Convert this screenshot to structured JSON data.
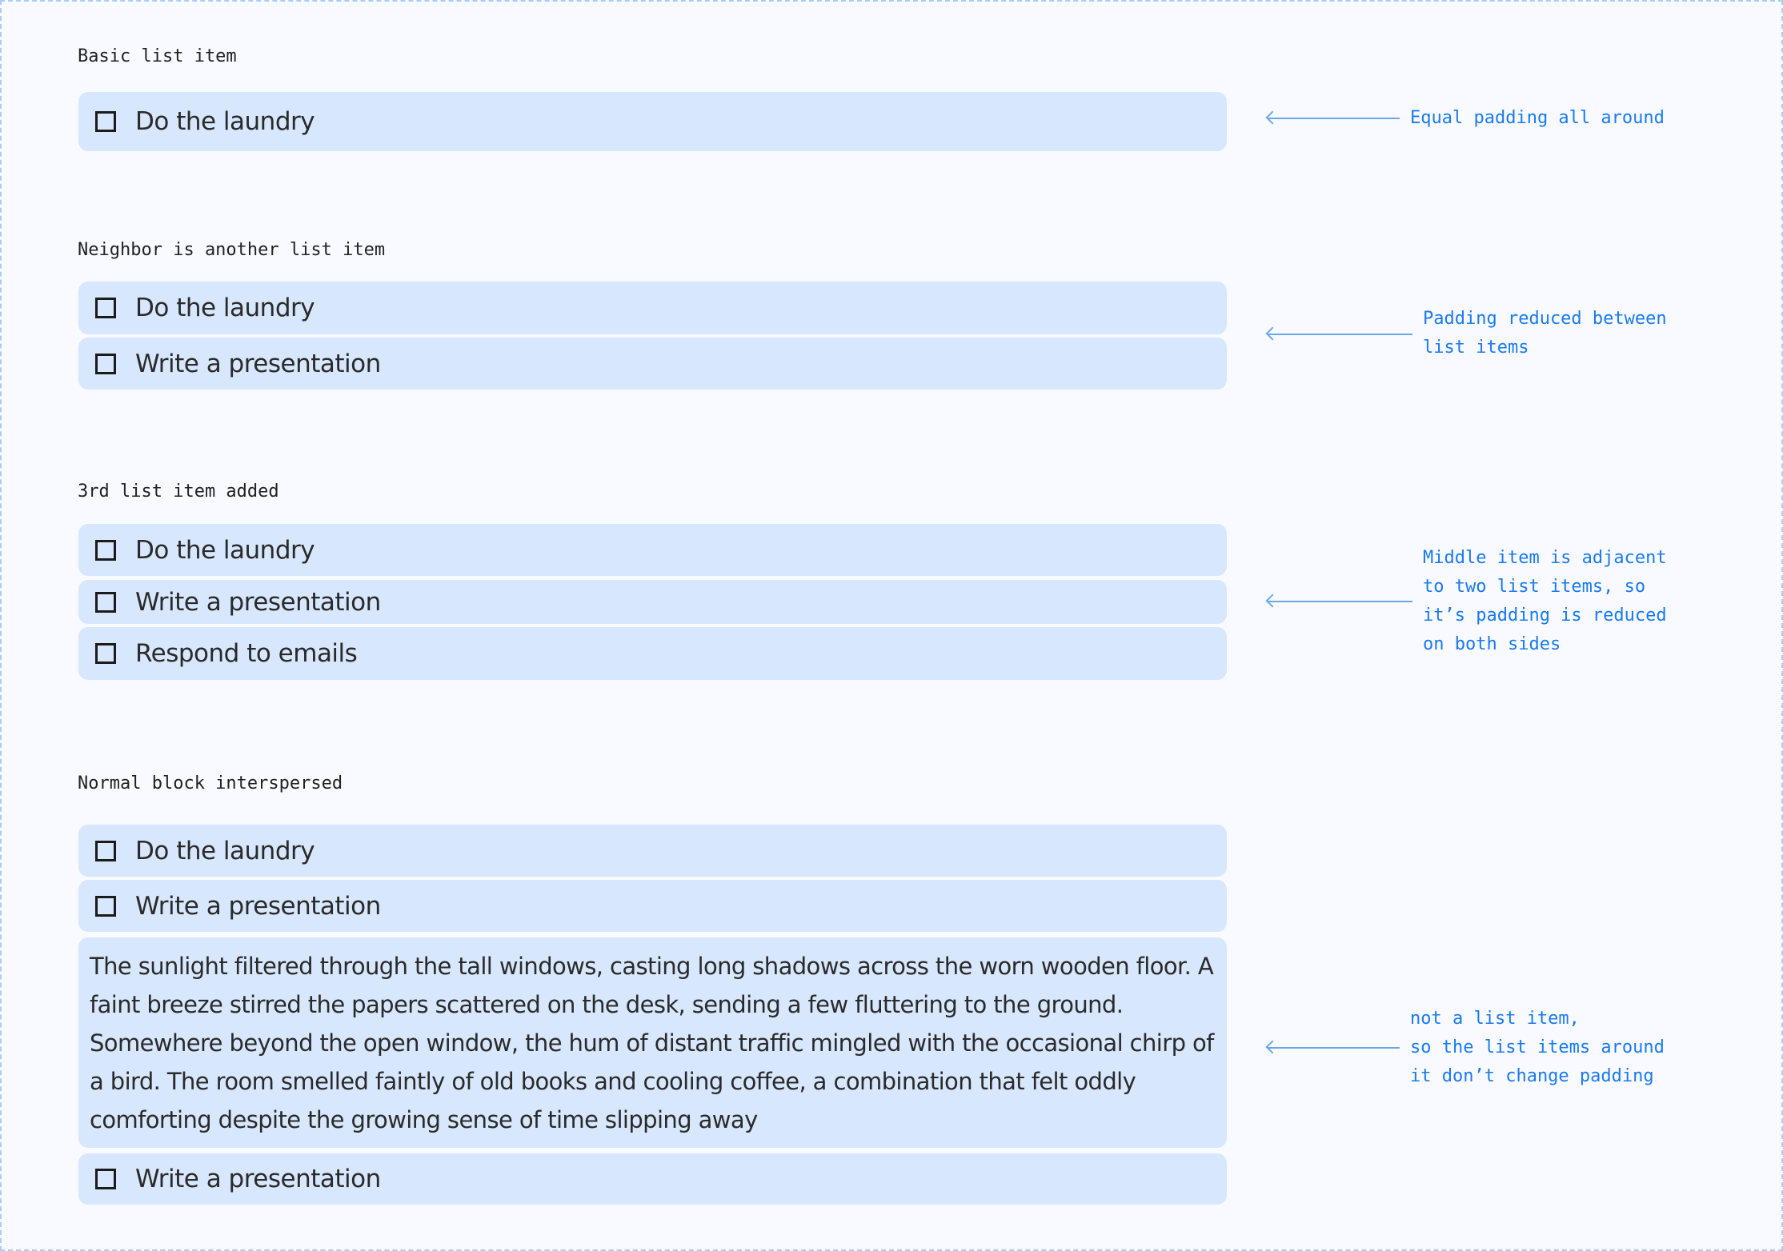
{
  "sections": [
    {
      "title": "Basic list item",
      "items": [
        "Do the laundry"
      ],
      "note": "Equal padding all around"
    },
    {
      "title": "Neighbor is another list item",
      "items": [
        "Do the laundry",
        "Write a presentation"
      ],
      "note": "Padding reduced between\nlist items"
    },
    {
      "title": "3rd list item added",
      "items": [
        "Do the laundry",
        "Write a presentation",
        "Respond to emails"
      ],
      "note": "Middle item is adjacent\nto two list items, so\nit’s padding is reduced\non both sides"
    },
    {
      "title": "Normal block interspersed",
      "items": [
        "Do the laundry",
        "Write a presentation",
        "Write a presentation"
      ],
      "paragraph": "The sunlight filtered through the tall windows, casting long shadows across the worn wooden floor. A faint breeze stirred the papers scattered on the desk, sending a few fluttering to the ground. Somewhere beyond the open window, the hum of distant traffic mingled with the occasional chirp of a bird. The room smelled faintly of old books and cooling coffee, a combination that felt oddly comforting despite the growing sense of time slipping away",
      "note": "not a list item,\nso the list items around\nit don’t change padding"
    }
  ],
  "colors": {
    "item_bg": "#d7e7fd",
    "note": "#1a7af0",
    "page_bg": "#f8faff"
  }
}
